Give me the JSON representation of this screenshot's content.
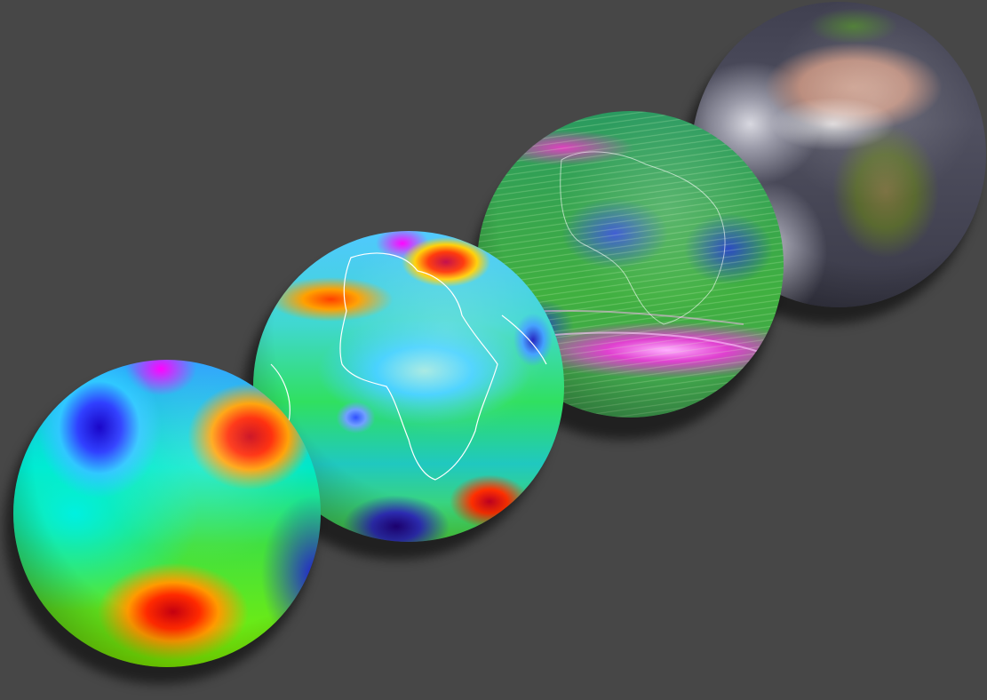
{
  "scene": {
    "background_color": "#474747",
    "globes": [
      {
        "id": "globe-1",
        "kind": "scalar-field",
        "colormap": "rainbow"
      },
      {
        "id": "globe-2",
        "kind": "atmospheric-field",
        "colormap": "rainbow",
        "coastline_color": "#ffffff"
      },
      {
        "id": "globe-3",
        "kind": "wind-flow",
        "colormap": "green-blue-magenta"
      },
      {
        "id": "globe-4",
        "kind": "satellite-imagery"
      }
    ]
  }
}
